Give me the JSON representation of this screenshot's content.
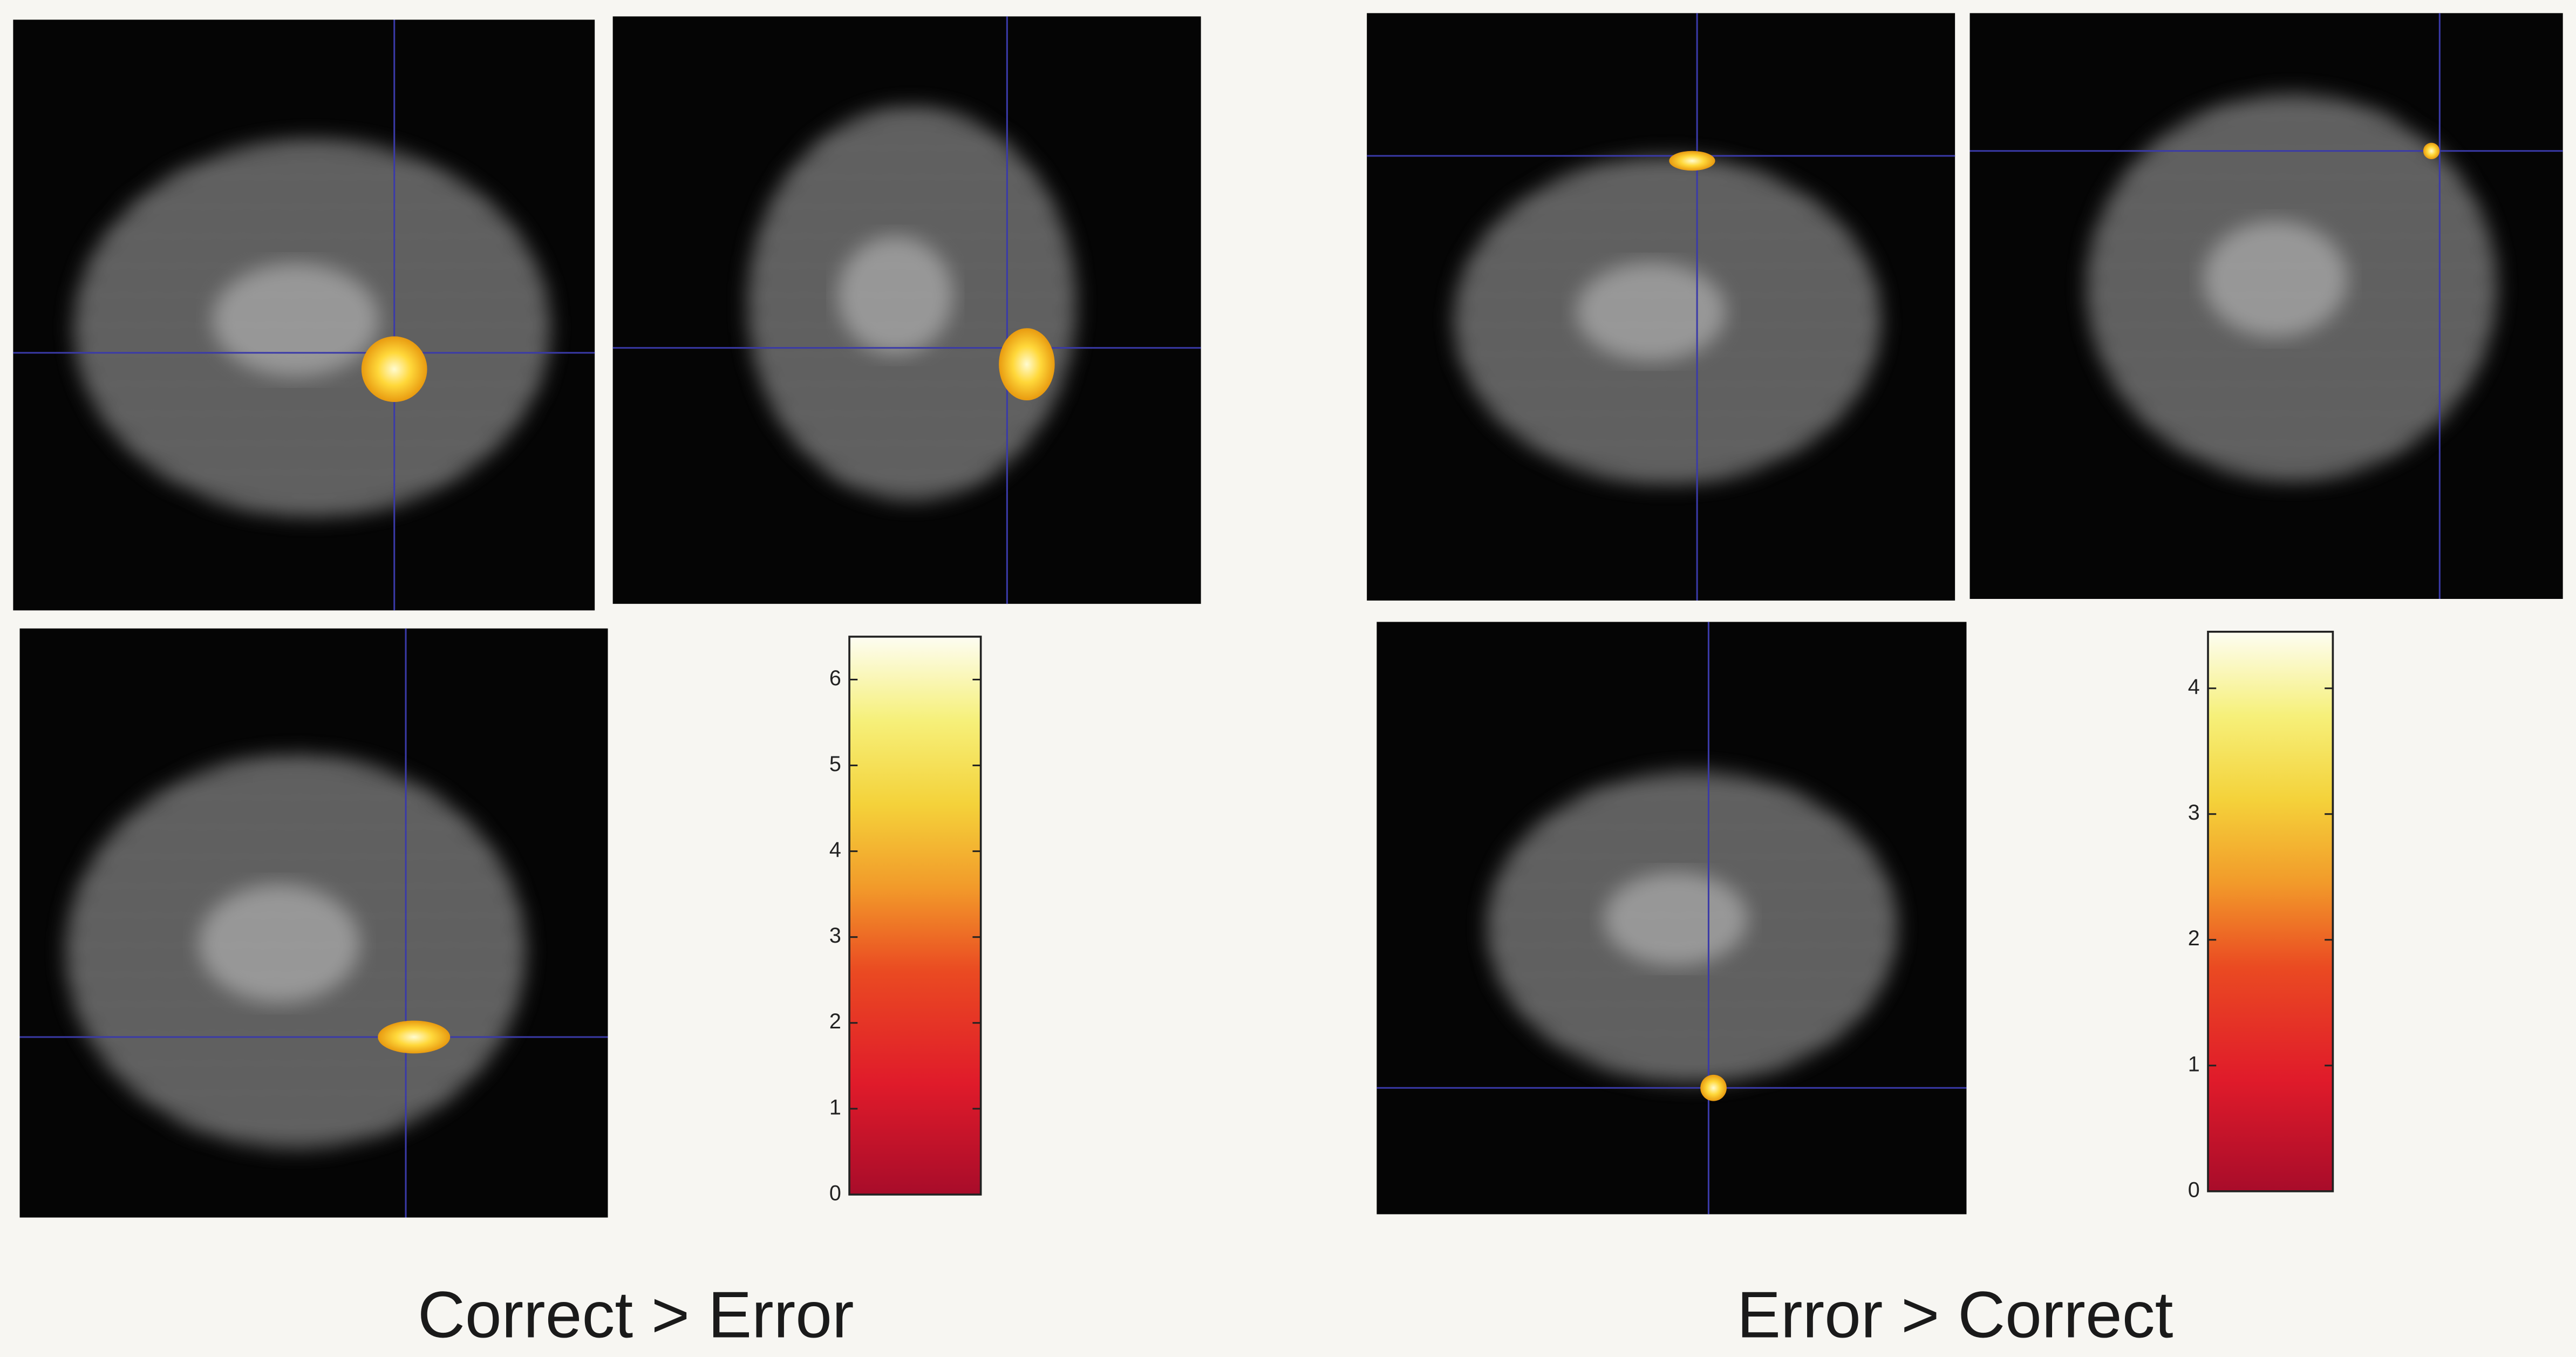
{
  "panels": [
    {
      "caption": "Correct > Error",
      "colorbar": {
        "lim": [
          0,
          6.5
        ],
        "ticks": [
          0,
          1,
          2,
          3,
          4,
          5,
          6
        ]
      }
    },
    {
      "caption": "Error > Correct",
      "colorbar": {
        "lim": [
          0,
          4.45
        ],
        "ticks": [
          0,
          1,
          2,
          3,
          4
        ]
      }
    }
  ]
}
